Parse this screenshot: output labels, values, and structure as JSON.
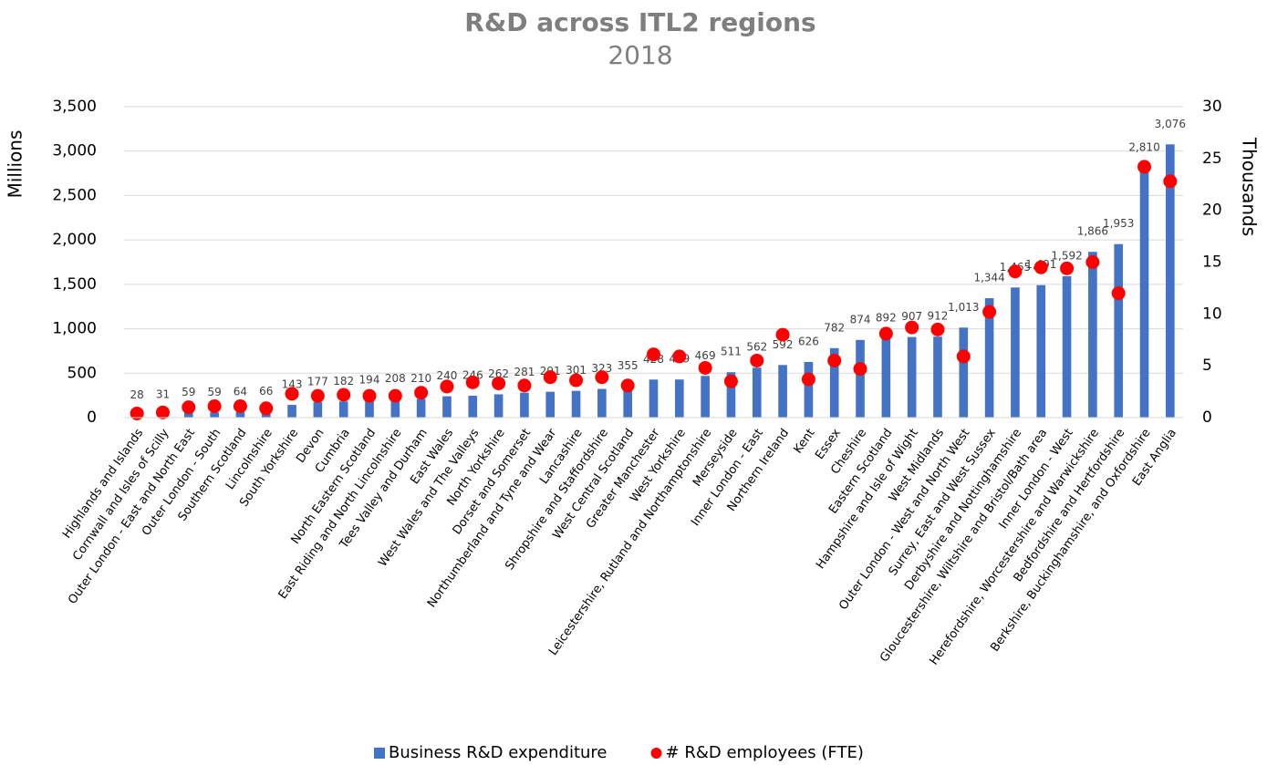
{
  "chart_data": {
    "type": "bar",
    "title": "R&D across ITL2 regions",
    "subtitle": "2018",
    "y_label": "Millions",
    "y2_label": "Thousands",
    "categories": [
      "Highlands and Islands",
      "Cornwall and Isles of Scilly",
      "Outer London - East and North East",
      "Outer London - South",
      "Southern Scotland",
      "Lincolnshire",
      "South Yorkshire",
      "Devon",
      "Cumbria",
      "North Eastern Scotland",
      "East Riding and North Lincolnshire",
      "Tees Valley and Durham",
      "East Wales",
      "West Wales and The Valleys",
      "North Yorkshire",
      "Dorset and Somerset",
      "Northumberland and Tyne and Wear",
      "Lancashire",
      "Shropshire and Staffordshire",
      "West Central Scotland",
      "Greater Manchester",
      "West Yorkshire",
      "Leicestershire, Rutland and Northamptonshire",
      "Merseyside",
      "Inner London - East",
      "Northern Ireland",
      "Kent",
      "Essex",
      "Cheshire",
      "Eastern Scotland",
      "Hampshire and Isle of Wight",
      "West Midlands",
      "Outer London - West and North West",
      "Surrey, East and West Sussex",
      "Derbyshire and Nottinghamshire",
      "Gloucestershire, Wiltshire and Bristol/Bath area",
      "Inner London - West",
      "Herefordshire, Worcestershire and Warwickshire",
      "Bedfordshire and Hertfordshire",
      "Berkshire, Buckinghamshire, and Oxfordshire",
      "East Anglia"
    ],
    "series": [
      {
        "name": "Business R&D expenditure",
        "type": "bar",
        "color": "#4472c4",
        "values": [
          28,
          31,
          59,
          59,
          64,
          66,
          143,
          177,
          182,
          194,
          208,
          210,
          240,
          246,
          262,
          281,
          291,
          301,
          323,
          355,
          428,
          429,
          469,
          511,
          562,
          592,
          626,
          782,
          874,
          892,
          907,
          912,
          1013,
          1344,
          1465,
          1491,
          1592,
          1866,
          1953,
          2810,
          3076
        ],
        "value_labels": [
          "28",
          "31",
          "59",
          "59",
          "64",
          "66",
          "143",
          "177",
          "182",
          "194",
          "208",
          "210",
          "240",
          "246",
          "262",
          "281",
          "291",
          "301",
          "323",
          "355",
          "428",
          "429",
          "469",
          "511",
          "562",
          "592",
          "626",
          "782",
          "874",
          "892",
          "907",
          "912",
          "1,013",
          "1,344",
          "1,465",
          "1,491",
          "1,592",
          "1,866",
          "1,953",
          "2,810",
          "3,076"
        ]
      },
      {
        "name": "# R&D employees (FTE)",
        "type": "scatter",
        "axis": "y2",
        "color": "#ff0000",
        "values": [
          0.4,
          0.5,
          1.0,
          1.1,
          1.1,
          0.9,
          2.3,
          2.1,
          2.2,
          2.1,
          2.1,
          2.4,
          3.0,
          3.4,
          3.3,
          3.1,
          3.9,
          3.6,
          3.9,
          3.1,
          6.1,
          5.9,
          4.8,
          3.5,
          5.5,
          8.0,
          3.7,
          5.5,
          4.7,
          8.1,
          8.7,
          8.5,
          5.9,
          10.2,
          14.1,
          14.5,
          14.4,
          15.0,
          12.0,
          24.2,
          22.8
        ]
      }
    ],
    "ylim": [
      0,
      3500
    ],
    "yticks": [
      0,
      500,
      {
        "value": 1000,
        "label": "1,000"
      },
      {
        "value": 1500,
        "label": "1,500"
      },
      {
        "value": 2000,
        "label": "2,000"
      },
      {
        "value": 2500,
        "label": "2,500"
      },
      {
        "value": 3000,
        "label": "3,000"
      },
      {
        "value": 3500,
        "label": "3,500"
      }
    ],
    "y2lim": [
      0,
      30
    ],
    "y2ticks": [
      0,
      5,
      10,
      15,
      20,
      25,
      30
    ],
    "grid": true,
    "legend": "bottom"
  }
}
